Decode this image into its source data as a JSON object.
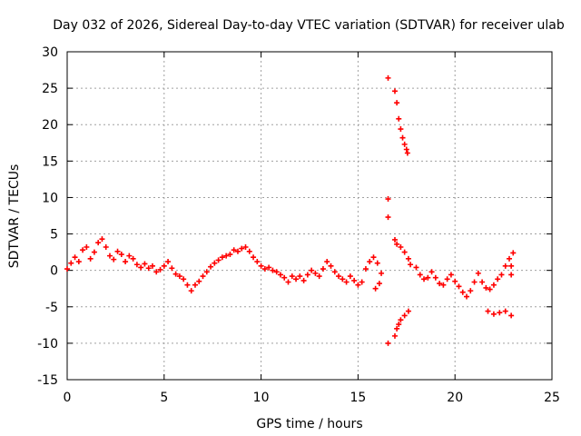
{
  "chart_data": {
    "type": "scatter",
    "title": "Day 032 of 2026, Sidereal Day-to-day VTEC variation (SDTVAR) for receiver ulab",
    "xlabel": "GPS time / hours",
    "ylabel": "SDTVAR / TECUs",
    "xlim": [
      0,
      25
    ],
    "ylim": [
      -15,
      30
    ],
    "xticks": [
      "0",
      "5",
      "10",
      "15",
      "20",
      "25"
    ],
    "yticks": [
      "-15",
      "-10",
      "-5",
      "0",
      "5",
      "10",
      "15",
      "20",
      "25",
      "30"
    ],
    "grid": true,
    "marker": "+",
    "series": [
      {
        "name": "SDTVAR",
        "color": "#ff0000",
        "points": [
          [
            0.0,
            0.2
          ],
          [
            0.2,
            1.0
          ],
          [
            0.4,
            1.8
          ],
          [
            0.6,
            1.2
          ],
          [
            0.8,
            2.8
          ],
          [
            1.0,
            3.2
          ],
          [
            1.2,
            1.6
          ],
          [
            1.4,
            2.5
          ],
          [
            1.6,
            3.8
          ],
          [
            1.8,
            4.3
          ],
          [
            2.0,
            3.2
          ],
          [
            2.2,
            2.0
          ],
          [
            2.4,
            1.5
          ],
          [
            2.6,
            2.6
          ],
          [
            2.8,
            2.2
          ],
          [
            3.0,
            1.2
          ],
          [
            3.2,
            2.0
          ],
          [
            3.4,
            1.6
          ],
          [
            3.6,
            0.8
          ],
          [
            3.8,
            0.4
          ],
          [
            4.0,
            0.9
          ],
          [
            4.2,
            0.3
          ],
          [
            4.4,
            0.6
          ],
          [
            4.6,
            -0.2
          ],
          [
            4.8,
            0.1
          ],
          [
            5.0,
            0.6
          ],
          [
            5.2,
            1.2
          ],
          [
            5.4,
            0.3
          ],
          [
            5.6,
            -0.5
          ],
          [
            5.8,
            -0.8
          ],
          [
            6.0,
            -1.2
          ],
          [
            6.2,
            -2.0
          ],
          [
            6.4,
            -2.8
          ],
          [
            6.6,
            -2.0
          ],
          [
            6.8,
            -1.5
          ],
          [
            7.0,
            -0.8
          ],
          [
            7.2,
            -0.2
          ],
          [
            7.4,
            0.5
          ],
          [
            7.6,
            1.0
          ],
          [
            7.8,
            1.4
          ],
          [
            8.0,
            1.8
          ],
          [
            8.2,
            2.0
          ],
          [
            8.4,
            2.2
          ],
          [
            8.6,
            2.8
          ],
          [
            8.8,
            2.6
          ],
          [
            9.0,
            3.0
          ],
          [
            9.2,
            3.2
          ],
          [
            9.4,
            2.6
          ],
          [
            9.6,
            1.8
          ],
          [
            9.8,
            1.2
          ],
          [
            10.0,
            0.6
          ],
          [
            10.2,
            0.2
          ],
          [
            10.4,
            0.4
          ],
          [
            10.6,
            0.0
          ],
          [
            10.8,
            -0.2
          ],
          [
            11.0,
            -0.6
          ],
          [
            11.2,
            -1.0
          ],
          [
            11.4,
            -1.6
          ],
          [
            11.6,
            -0.8
          ],
          [
            11.8,
            -1.2
          ],
          [
            12.0,
            -0.8
          ],
          [
            12.2,
            -1.4
          ],
          [
            12.4,
            -0.6
          ],
          [
            12.6,
            0.0
          ],
          [
            12.8,
            -0.4
          ],
          [
            13.0,
            -0.8
          ],
          [
            13.2,
            0.2
          ],
          [
            13.4,
            1.2
          ],
          [
            13.6,
            0.6
          ],
          [
            13.8,
            -0.2
          ],
          [
            14.0,
            -0.8
          ],
          [
            14.2,
            -1.2
          ],
          [
            14.4,
            -1.6
          ],
          [
            14.6,
            -0.8
          ],
          [
            14.8,
            -1.4
          ],
          [
            15.0,
            -2.0
          ],
          [
            15.2,
            -1.6
          ],
          [
            15.4,
            0.2
          ],
          [
            15.6,
            1.2
          ],
          [
            15.8,
            1.8
          ],
          [
            16.0,
            1.0
          ],
          [
            16.2,
            -0.4
          ],
          [
            16.1,
            -1.8
          ],
          [
            15.9,
            -2.5
          ],
          [
            16.55,
            26.4
          ],
          [
            16.55,
            9.8
          ],
          [
            16.55,
            7.3
          ],
          [
            16.55,
            -10.0
          ],
          [
            16.9,
            24.6
          ],
          [
            17.0,
            23.0
          ],
          [
            17.1,
            20.8
          ],
          [
            17.2,
            19.4
          ],
          [
            17.3,
            18.2
          ],
          [
            17.4,
            17.3
          ],
          [
            17.5,
            16.6
          ],
          [
            17.55,
            16.1
          ],
          [
            16.9,
            4.2
          ],
          [
            17.0,
            3.6
          ],
          [
            17.2,
            3.2
          ],
          [
            17.4,
            2.5
          ],
          [
            17.6,
            1.6
          ],
          [
            17.7,
            0.8
          ],
          [
            16.9,
            -9.0
          ],
          [
            17.0,
            -8.0
          ],
          [
            17.1,
            -7.4
          ],
          [
            17.2,
            -6.8
          ],
          [
            17.4,
            -6.2
          ],
          [
            17.6,
            -5.6
          ],
          [
            18.0,
            0.4
          ],
          [
            18.2,
            -0.6
          ],
          [
            18.4,
            -1.2
          ],
          [
            18.6,
            -1.0
          ],
          [
            18.8,
            -0.2
          ],
          [
            19.0,
            -1.0
          ],
          [
            19.2,
            -1.8
          ],
          [
            19.4,
            -2.0
          ],
          [
            19.6,
            -1.2
          ],
          [
            19.8,
            -0.6
          ],
          [
            20.0,
            -1.5
          ],
          [
            20.2,
            -2.2
          ],
          [
            20.4,
            -3.0
          ],
          [
            20.6,
            -3.6
          ],
          [
            20.8,
            -2.8
          ],
          [
            21.0,
            -1.6
          ],
          [
            21.2,
            -0.4
          ],
          [
            21.4,
            -1.6
          ],
          [
            21.6,
            -2.4
          ],
          [
            21.8,
            -2.6
          ],
          [
            22.0,
            -2.0
          ],
          [
            22.2,
            -1.2
          ],
          [
            22.4,
            -0.6
          ],
          [
            22.6,
            0.6
          ],
          [
            22.8,
            1.6
          ],
          [
            23.0,
            2.4
          ],
          [
            22.9,
            0.6
          ],
          [
            22.9,
            -0.6
          ],
          [
            21.7,
            -5.6
          ],
          [
            22.0,
            -6.0
          ],
          [
            22.3,
            -5.8
          ],
          [
            22.6,
            -5.6
          ],
          [
            22.9,
            -6.2
          ]
        ]
      }
    ]
  }
}
